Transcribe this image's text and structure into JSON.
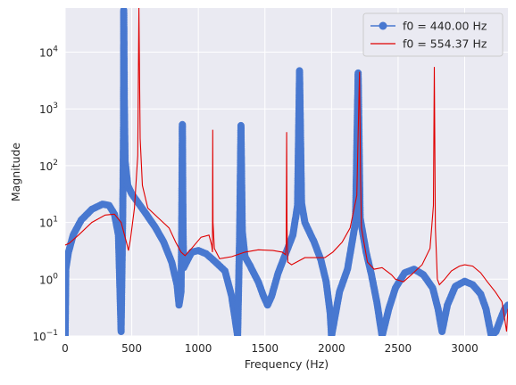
{
  "chart_data": {
    "type": "line",
    "xlabel": "Frequency (Hz)",
    "ylabel": "Magnitude",
    "xlim": [
      0,
      3325
    ],
    "ylim": [
      0.1,
      60000
    ],
    "yscale": "log",
    "grid": true,
    "legend_position": "top-right",
    "x_ticks": [
      0,
      500,
      1000,
      1500,
      2000,
      2500,
      3000
    ],
    "y_ticks": [
      {
        "value": 0.1,
        "base": "10",
        "exp": "−1"
      },
      {
        "value": 1,
        "base": "10",
        "exp": "0"
      },
      {
        "value": 10,
        "base": "10",
        "exp": "1"
      },
      {
        "value": 100,
        "base": "10",
        "exp": "2"
      },
      {
        "value": 1000,
        "base": "10",
        "exp": "3"
      },
      {
        "value": 10000,
        "base": "10",
        "exp": "4"
      }
    ],
    "series": [
      {
        "name": "f0 = 440.00 Hz",
        "color": "#4878d0",
        "marker": "circle",
        "points": [
          [
            0,
            0.1
          ],
          [
            5,
            1.5
          ],
          [
            25,
            3
          ],
          [
            60,
            6
          ],
          [
            120,
            11
          ],
          [
            200,
            17
          ],
          [
            280,
            21
          ],
          [
            330,
            20
          ],
          [
            370,
            14
          ],
          [
            400,
            6
          ],
          [
            420,
            0.12
          ],
          [
            432,
            12
          ],
          [
            438,
            400
          ],
          [
            440,
            55000
          ],
          [
            444,
            1500
          ],
          [
            450,
            120
          ],
          [
            470,
            45
          ],
          [
            500,
            32
          ],
          [
            600,
            15
          ],
          [
            680,
            8
          ],
          [
            740,
            4.5
          ],
          [
            800,
            2
          ],
          [
            840,
            0.8
          ],
          [
            855,
            0.35
          ],
          [
            870,
            0.6
          ],
          [
            875,
            6
          ],
          [
            880,
            530
          ],
          [
            885,
            8
          ],
          [
            890,
            1.6
          ],
          [
            950,
            3
          ],
          [
            1000,
            3.2
          ],
          [
            1060,
            2.8
          ],
          [
            1120,
            2.1
          ],
          [
            1200,
            1.4
          ],
          [
            1250,
            0.5
          ],
          [
            1295,
            0.1
          ],
          [
            1310,
            6
          ],
          [
            1320,
            510
          ],
          [
            1330,
            7
          ],
          [
            1350,
            2.5
          ],
          [
            1390,
            1.7
          ],
          [
            1450,
            0.9
          ],
          [
            1490,
            0.5
          ],
          [
            1520,
            0.35
          ],
          [
            1550,
            0.5
          ],
          [
            1600,
            1.3
          ],
          [
            1660,
            3
          ],
          [
            1710,
            6
          ],
          [
            1745,
            20
          ],
          [
            1760,
            4700
          ],
          [
            1775,
            22
          ],
          [
            1800,
            10
          ],
          [
            1870,
            4.5
          ],
          [
            1920,
            2.2
          ],
          [
            1960,
            0.9
          ],
          [
            1990,
            0.25
          ],
          [
            2000,
            0.1
          ],
          [
            2060,
            0.6
          ],
          [
            2120,
            1.5
          ],
          [
            2180,
            10
          ],
          [
            2200,
            4300
          ],
          [
            2215,
            12
          ],
          [
            2260,
            3
          ],
          [
            2300,
            1.2
          ],
          [
            2340,
            0.4
          ],
          [
            2380,
            0.1
          ],
          [
            2430,
            0.3
          ],
          [
            2480,
            0.7
          ],
          [
            2550,
            1.3
          ],
          [
            2620,
            1.5
          ],
          [
            2690,
            1.2
          ],
          [
            2760,
            0.7
          ],
          [
            2800,
            0.3
          ],
          [
            2830,
            0.12
          ],
          [
            2870,
            0.35
          ],
          [
            2930,
            0.75
          ],
          [
            3000,
            0.92
          ],
          [
            3060,
            0.8
          ],
          [
            3120,
            0.55
          ],
          [
            3160,
            0.3
          ],
          [
            3200,
            0.1
          ],
          [
            3235,
            0.12
          ],
          [
            3270,
            0.2
          ],
          [
            3300,
            0.3
          ],
          [
            3325,
            0.35
          ]
        ]
      },
      {
        "name": "f0 = 554.37 Hz",
        "color": "#e00000",
        "marker": "none",
        "points": [
          [
            0,
            4
          ],
          [
            30,
            4.3
          ],
          [
            100,
            6
          ],
          [
            200,
            10
          ],
          [
            300,
            13.5
          ],
          [
            370,
            14
          ],
          [
            420,
            10
          ],
          [
            460,
            4.5
          ],
          [
            475,
            3.2
          ],
          [
            490,
            5
          ],
          [
            520,
            18
          ],
          [
            545,
            150
          ],
          [
            554,
            60000
          ],
          [
            563,
            300
          ],
          [
            580,
            45
          ],
          [
            620,
            18
          ],
          [
            700,
            12
          ],
          [
            780,
            8
          ],
          [
            830,
            4.5
          ],
          [
            870,
            3
          ],
          [
            900,
            2.6
          ],
          [
            950,
            3.5
          ],
          [
            1020,
            5.5
          ],
          [
            1080,
            6
          ],
          [
            1100,
            4
          ],
          [
            1106,
            3
          ],
          [
            1108,
            430
          ],
          [
            1110,
            10
          ],
          [
            1120,
            3.5
          ],
          [
            1160,
            2.3
          ],
          [
            1250,
            2.5
          ],
          [
            1350,
            3
          ],
          [
            1450,
            3.3
          ],
          [
            1560,
            3.2
          ],
          [
            1630,
            3
          ],
          [
            1655,
            2.7
          ],
          [
            1660,
            4
          ],
          [
            1663,
            390
          ],
          [
            1666,
            8
          ],
          [
            1672,
            2
          ],
          [
            1700,
            1.8
          ],
          [
            1800,
            2.4
          ],
          [
            1900,
            2.4
          ],
          [
            1950,
            2.4
          ],
          [
            2010,
            3
          ],
          [
            2080,
            4.5
          ],
          [
            2140,
            8
          ],
          [
            2190,
            30
          ],
          [
            2210,
            4500
          ],
          [
            2218,
            60
          ],
          [
            2225,
            8
          ],
          [
            2240,
            5
          ],
          [
            2270,
            2
          ],
          [
            2320,
            1.5
          ],
          [
            2380,
            1.6
          ],
          [
            2450,
            1.2
          ],
          [
            2480,
            1
          ],
          [
            2540,
            0.9
          ],
          [
            2600,
            1.2
          ],
          [
            2680,
            1.8
          ],
          [
            2740,
            3.5
          ],
          [
            2765,
            20
          ],
          [
            2772,
            5500
          ],
          [
            2780,
            8
          ],
          [
            2795,
            1
          ],
          [
            2810,
            0.8
          ],
          [
            2850,
            1
          ],
          [
            2900,
            1.4
          ],
          [
            2960,
            1.7
          ],
          [
            3000,
            1.8
          ],
          [
            3060,
            1.7
          ],
          [
            3120,
            1.3
          ],
          [
            3170,
            0.9
          ],
          [
            3230,
            0.6
          ],
          [
            3280,
            0.4
          ],
          [
            3315,
            0.12
          ],
          [
            3325,
            0.3
          ]
        ]
      }
    ]
  }
}
